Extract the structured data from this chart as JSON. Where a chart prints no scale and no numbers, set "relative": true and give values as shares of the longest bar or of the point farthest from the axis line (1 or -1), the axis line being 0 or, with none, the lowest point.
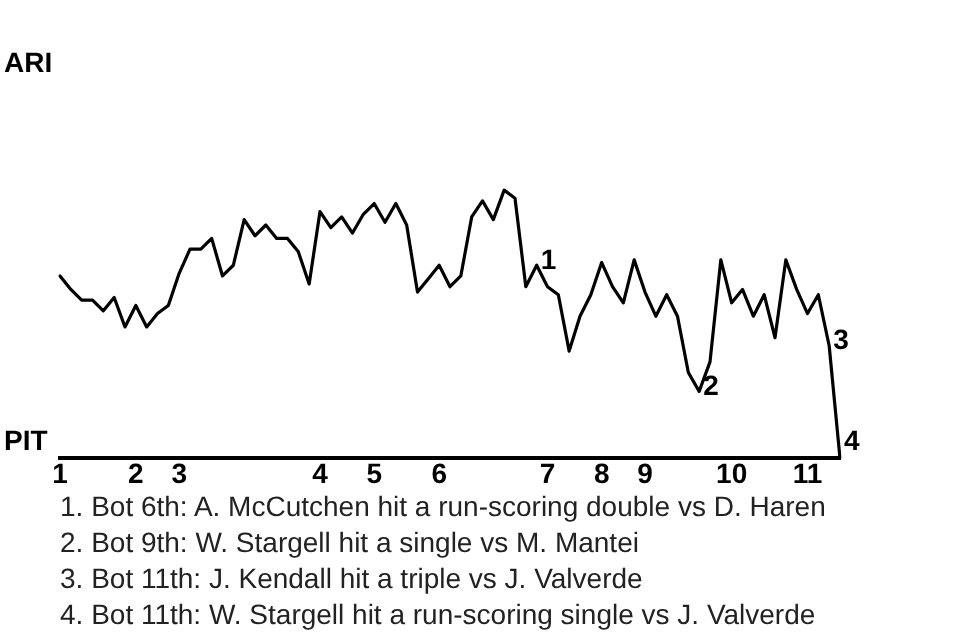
{
  "chart_data": {
    "type": "line",
    "color": "#000000",
    "relative": true,
    "categories": [
      "1",
      null,
      null,
      null,
      null,
      null,
      null,
      "2",
      null,
      null,
      null,
      "3",
      null,
      null,
      null,
      null,
      null,
      null,
      null,
      null,
      null,
      null,
      null,
      null,
      "4",
      null,
      null,
      null,
      null,
      "5",
      null,
      null,
      null,
      null,
      null,
      "6",
      null,
      null,
      null,
      null,
      null,
      null,
      null,
      null,
      null,
      "7",
      null,
      null,
      null,
      null,
      "8",
      null,
      null,
      null,
      "9",
      null,
      null,
      null,
      null,
      null,
      null,
      null,
      "10",
      null,
      null,
      null,
      null,
      null,
      null,
      "11",
      null,
      null,
      null
    ],
    "values": [
      0.68,
      0.63,
      0.59,
      0.59,
      0.55,
      0.6,
      0.49,
      0.57,
      0.49,
      0.54,
      0.57,
      0.69,
      0.78,
      0.78,
      0.82,
      0.68,
      0.72,
      0.89,
      0.83,
      0.87,
      0.82,
      0.82,
      0.77,
      0.65,
      0.92,
      0.86,
      0.9,
      0.84,
      0.91,
      0.95,
      0.88,
      0.95,
      0.87,
      0.62,
      0.67,
      0.72,
      0.64,
      0.68,
      0.9,
      0.96,
      0.89,
      1,
      0.97,
      0.64,
      0.72,
      0.64,
      0.61,
      0.4,
      0.53,
      0.61,
      0.73,
      0.64,
      0.58,
      0.74,
      0.62,
      0.53,
      0.61,
      0.53,
      0.32,
      0.25,
      0.36,
      0.74,
      0.58,
      0.63,
      0.53,
      0.61,
      0.45,
      0.74,
      0.63,
      0.54,
      0.61,
      0.42,
      0
    ],
    "annotations": [
      "ARI",
      "PIT",
      {
        "text": "1",
        "y": 0.72
      },
      {
        "text": "2",
        "y": 0.25
      },
      "3",
      "4",
      "1. Bot 6th: A. McCutchen hit a run-scoring double vs D. Haren",
      "2. Bot 9th: W. Stargell hit a single vs M. Mantei",
      "3. Bot 11th: J. Kendall hit a triple vs J. Valverde",
      "4. Bot 11th: W. Stargell hit a run-scoring single vs J. Valverde"
    ],
    "marker": "none",
    "line_style": "solid"
  }
}
